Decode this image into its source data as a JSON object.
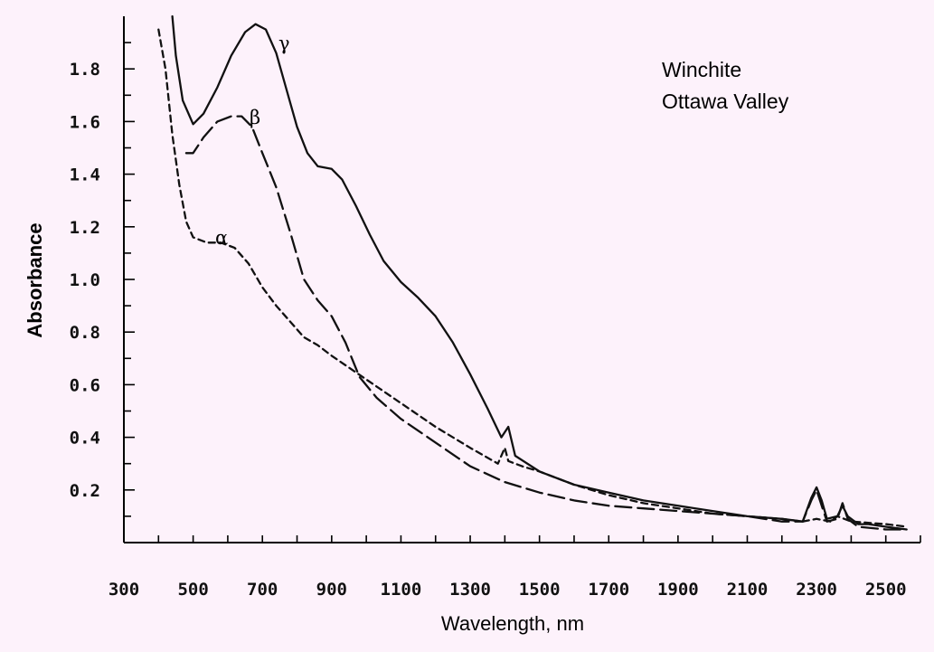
{
  "chart_data": {
    "type": "line",
    "annotation": [
      "Winchite",
      "Ottawa Valley"
    ],
    "xlabel": "Wavelength, nm",
    "ylabel": "Absorbance",
    "xlim": [
      300,
      2600
    ],
    "ylim": [
      0,
      2.0
    ],
    "x_ticks": [
      300,
      500,
      700,
      900,
      1100,
      1300,
      1500,
      1700,
      1900,
      2100,
      2300,
      2500
    ],
    "y_ticks": [
      0.2,
      0.4,
      0.6,
      0.8,
      1.0,
      1.2,
      1.4,
      1.6,
      1.8
    ],
    "y_tick_labels": [
      "0.2",
      "0.4",
      "0.6",
      "0.8",
      "1.0",
      "1.2",
      "1.4",
      "1.6",
      "1.8"
    ],
    "grid": false,
    "series": [
      {
        "name": "γ",
        "style": "solid",
        "points": [
          [
            440,
            2.0
          ],
          [
            450,
            1.85
          ],
          [
            470,
            1.68
          ],
          [
            500,
            1.59
          ],
          [
            530,
            1.63
          ],
          [
            570,
            1.73
          ],
          [
            610,
            1.85
          ],
          [
            650,
            1.94
          ],
          [
            680,
            1.97
          ],
          [
            710,
            1.95
          ],
          [
            740,
            1.86
          ],
          [
            770,
            1.72
          ],
          [
            800,
            1.58
          ],
          [
            830,
            1.48
          ],
          [
            860,
            1.43
          ],
          [
            900,
            1.42
          ],
          [
            930,
            1.38
          ],
          [
            970,
            1.28
          ],
          [
            1010,
            1.17
          ],
          [
            1050,
            1.07
          ],
          [
            1100,
            0.99
          ],
          [
            1150,
            0.93
          ],
          [
            1200,
            0.86
          ],
          [
            1250,
            0.76
          ],
          [
            1300,
            0.64
          ],
          [
            1350,
            0.51
          ],
          [
            1390,
            0.4
          ],
          [
            1410,
            0.44
          ],
          [
            1430,
            0.33
          ],
          [
            1500,
            0.27
          ],
          [
            1600,
            0.22
          ],
          [
            1700,
            0.19
          ],
          [
            1800,
            0.16
          ],
          [
            1900,
            0.14
          ],
          [
            2000,
            0.12
          ],
          [
            2100,
            0.1
          ],
          [
            2200,
            0.09
          ],
          [
            2260,
            0.08
          ],
          [
            2285,
            0.17
          ],
          [
            2300,
            0.21
          ],
          [
            2315,
            0.16
          ],
          [
            2330,
            0.09
          ],
          [
            2360,
            0.1
          ],
          [
            2375,
            0.14
          ],
          [
            2390,
            0.1
          ],
          [
            2420,
            0.07
          ],
          [
            2450,
            0.07
          ],
          [
            2500,
            0.06
          ],
          [
            2560,
            0.05
          ]
        ]
      },
      {
        "name": "β",
        "style": "long-dash",
        "points": [
          [
            480,
            1.48
          ],
          [
            500,
            1.48
          ],
          [
            530,
            1.54
          ],
          [
            570,
            1.6
          ],
          [
            610,
            1.62
          ],
          [
            640,
            1.62
          ],
          [
            670,
            1.58
          ],
          [
            700,
            1.48
          ],
          [
            740,
            1.35
          ],
          [
            780,
            1.18
          ],
          [
            820,
            1.0
          ],
          [
            860,
            0.92
          ],
          [
            900,
            0.86
          ],
          [
            940,
            0.76
          ],
          [
            980,
            0.63
          ],
          [
            1030,
            0.55
          ],
          [
            1100,
            0.47
          ],
          [
            1200,
            0.38
          ],
          [
            1300,
            0.29
          ],
          [
            1400,
            0.23
          ],
          [
            1500,
            0.19
          ],
          [
            1600,
            0.16
          ],
          [
            1700,
            0.14
          ],
          [
            1800,
            0.13
          ],
          [
            1900,
            0.12
          ],
          [
            2000,
            0.11
          ],
          [
            2100,
            0.1
          ],
          [
            2200,
            0.08
          ],
          [
            2260,
            0.08
          ],
          [
            2285,
            0.16
          ],
          [
            2300,
            0.2
          ],
          [
            2315,
            0.14
          ],
          [
            2330,
            0.08
          ],
          [
            2360,
            0.09
          ],
          [
            2375,
            0.15
          ],
          [
            2390,
            0.09
          ],
          [
            2420,
            0.06
          ],
          [
            2500,
            0.05
          ],
          [
            2560,
            0.05
          ]
        ]
      },
      {
        "name": "α",
        "style": "short-dash",
        "points": [
          [
            400,
            1.95
          ],
          [
            420,
            1.8
          ],
          [
            440,
            1.55
          ],
          [
            460,
            1.36
          ],
          [
            480,
            1.22
          ],
          [
            500,
            1.16
          ],
          [
            540,
            1.14
          ],
          [
            580,
            1.14
          ],
          [
            620,
            1.12
          ],
          [
            660,
            1.06
          ],
          [
            700,
            0.97
          ],
          [
            740,
            0.9
          ],
          [
            780,
            0.84
          ],
          [
            820,
            0.78
          ],
          [
            860,
            0.75
          ],
          [
            900,
            0.71
          ],
          [
            1000,
            0.62
          ],
          [
            1100,
            0.53
          ],
          [
            1200,
            0.44
          ],
          [
            1300,
            0.36
          ],
          [
            1380,
            0.3
          ],
          [
            1400,
            0.36
          ],
          [
            1410,
            0.31
          ],
          [
            1450,
            0.29
          ],
          [
            1500,
            0.27
          ],
          [
            1600,
            0.22
          ],
          [
            1700,
            0.18
          ],
          [
            1800,
            0.15
          ],
          [
            1900,
            0.13
          ],
          [
            2000,
            0.11
          ],
          [
            2100,
            0.1
          ],
          [
            2200,
            0.09
          ],
          [
            2260,
            0.08
          ],
          [
            2300,
            0.09
          ],
          [
            2340,
            0.08
          ],
          [
            2360,
            0.1
          ],
          [
            2400,
            0.08
          ],
          [
            2500,
            0.07
          ],
          [
            2560,
            0.06
          ]
        ]
      }
    ]
  }
}
